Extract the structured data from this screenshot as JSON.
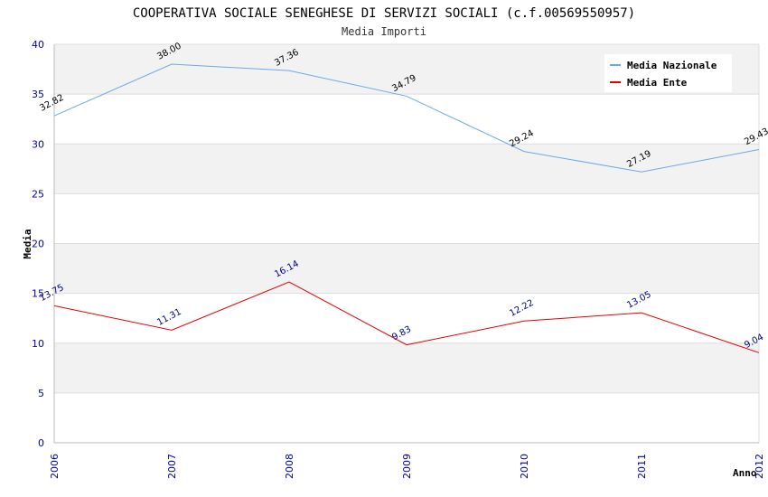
{
  "chart_data": {
    "type": "line",
    "title": "COOPERATIVA SOCIALE SENEGHESE DI SERVIZI SOCIALI (c.f.00569550957)",
    "subtitle": "Media Importi",
    "xlabel": "Anno",
    "ylabel": "Media",
    "categories": [
      "2006",
      "2007",
      "2008",
      "2009",
      "2010",
      "2011",
      "2012"
    ],
    "ylim": [
      0,
      40
    ],
    "yticks": [
      0,
      5,
      10,
      15,
      20,
      25,
      30,
      35,
      40
    ],
    "grid": true,
    "legend_position": "top-right",
    "series": [
      {
        "name": "Media Nazionale",
        "color": "#6aaae8",
        "label_color": "#000000",
        "values": [
          32.82,
          38.0,
          37.36,
          34.79,
          29.24,
          27.19,
          29.43
        ],
        "labels": [
          "32.82",
          "38.00",
          "37.36",
          "34.79",
          "29.24",
          "27.19",
          "29.43"
        ]
      },
      {
        "name": "Media Ente",
        "color": "#e80000",
        "label_color": "#00008b",
        "values": [
          13.75,
          11.31,
          16.14,
          9.83,
          12.22,
          13.05,
          9.04
        ],
        "labels": [
          "13.75",
          "11.31",
          "16.14",
          "9.83",
          "12.22",
          "13.05",
          "9.04"
        ]
      }
    ]
  },
  "colors": {
    "axis_text": "#0000aa",
    "band": "#f2f2f2",
    "grid": "#dddddd"
  }
}
